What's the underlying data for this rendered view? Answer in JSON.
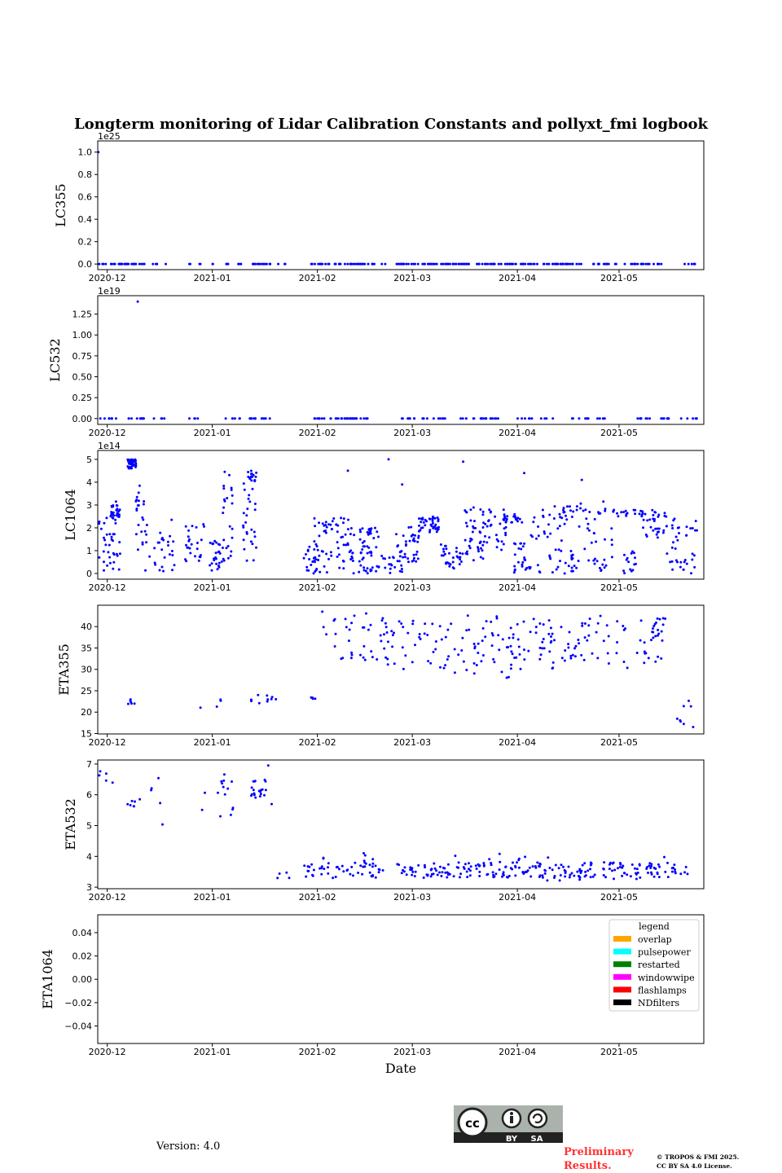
{
  "title": "Longterm monitoring of Lidar Calibration Constants and pollyxt_fmi logbook",
  "xlabel": "Date",
  "x_axis": {
    "unit": "days since 2020-12-01",
    "range": [
      -2.8,
      176
    ],
    "ticks": [
      {
        "value": 0,
        "label": "2020-12"
      },
      {
        "value": 31,
        "label": "2021-01"
      },
      {
        "value": 62,
        "label": "2021-02"
      },
      {
        "value": 90,
        "label": "2021-03"
      },
      {
        "value": 121,
        "label": "2021-04"
      },
      {
        "value": 151,
        "label": "2021-05"
      }
    ]
  },
  "chart_data": [
    {
      "type": "scatter",
      "ylabel": "LC355",
      "offset_text": "1e25",
      "ylim": [
        -0.05,
        1.1
      ],
      "color": "#0000ff",
      "yticks": [
        {
          "value": 0,
          "label": "0.0"
        },
        {
          "value": 0.2,
          "label": "0.2"
        },
        {
          "value": 0.4,
          "label": "0.4"
        },
        {
          "value": 0.6,
          "label": "0.6"
        },
        {
          "value": 0.8,
          "label": "0.8"
        },
        {
          "value": 1.0,
          "label": "1.0"
        }
      ],
      "clusters": [
        [
          -2.4,
          11,
          0,
          0,
          30
        ],
        [
          12.6,
          17.4,
          0,
          0,
          5
        ],
        [
          24,
          24.8,
          0,
          0,
          2
        ],
        [
          26.9,
          27.6,
          0,
          0,
          2
        ],
        [
          31,
          31.5,
          0,
          0,
          2
        ],
        [
          34.5,
          35.7,
          0,
          0,
          3
        ],
        [
          37.6,
          39.5,
          0,
          0,
          4
        ],
        [
          42.4,
          48.1,
          0,
          0,
          15
        ],
        [
          50.2,
          53.8,
          0,
          0,
          3
        ],
        [
          60.2,
          79.3,
          0,
          0,
          40
        ],
        [
          81,
          82.4,
          0,
          0,
          2
        ],
        [
          85.2,
          106.7,
          0,
          0,
          50
        ],
        [
          108.6,
          126.9,
          0,
          0,
          40
        ],
        [
          128.6,
          140,
          0,
          0,
          30
        ],
        [
          141.9,
          143.6,
          0,
          0,
          3
        ],
        [
          144.8,
          151,
          0,
          0,
          12
        ],
        [
          152.4,
          164.3,
          0,
          0,
          20
        ],
        [
          169.3,
          173.8,
          0,
          0,
          6
        ]
      ],
      "points": [
        [
          -2.6,
          1.0
        ]
      ]
    },
    {
      "type": "scatter",
      "ylabel": "LC532",
      "offset_text": "1e19",
      "ylim": [
        -0.07,
        1.47
      ],
      "color": "#0000ff",
      "yticks": [
        {
          "value": 0,
          "label": "0.00"
        },
        {
          "value": 0.25,
          "label": "0.25"
        },
        {
          "value": 0.5,
          "label": "0.50"
        },
        {
          "value": 0.75,
          "label": "0.75"
        },
        {
          "value": 1.0,
          "label": "1.00"
        },
        {
          "value": 1.25,
          "label": "1.25"
        }
      ],
      "clusters": [
        [
          -2.4,
          3.1,
          0,
          0,
          10
        ],
        [
          6.2,
          11,
          0,
          0,
          10
        ],
        [
          13,
          17,
          0,
          0,
          4
        ],
        [
          24,
          27.6,
          0,
          0,
          4
        ],
        [
          34.5,
          39.5,
          0,
          0,
          6
        ],
        [
          42,
          48,
          0,
          0,
          14
        ],
        [
          60,
          78,
          0,
          0,
          35
        ],
        [
          86,
          92,
          0,
          0,
          8
        ],
        [
          93,
          102,
          0,
          0,
          10
        ],
        [
          104,
          116,
          0,
          0,
          20
        ],
        [
          121,
          133,
          0,
          0,
          10
        ],
        [
          137,
          149,
          0,
          0,
          12
        ],
        [
          156,
          166,
          0,
          0,
          15
        ],
        [
          169,
          174,
          0,
          0,
          6
        ]
      ],
      "points": [
        [
          9,
          1.4
        ]
      ]
    },
    {
      "type": "scatter",
      "ylabel": "LC1064",
      "offset_text": "1e14",
      "ylim": [
        -0.25,
        5.39
      ],
      "color": "#0000ff",
      "yticks": [
        {
          "value": 0,
          "label": "0"
        },
        {
          "value": 1,
          "label": "1"
        },
        {
          "value": 2,
          "label": "2"
        },
        {
          "value": 3,
          "label": "3"
        },
        {
          "value": 4,
          "label": "4"
        },
        {
          "value": 5,
          "label": "5"
        }
      ],
      "clusters": [
        [
          -3,
          4,
          0,
          3.2,
          40
        ],
        [
          1,
          4,
          2.4,
          3.0,
          25
        ],
        [
          6,
          8.5,
          4.6,
          5.0,
          40
        ],
        [
          8,
          11,
          1,
          4,
          20
        ],
        [
          11,
          20,
          0.1,
          2.5,
          30
        ],
        [
          23,
          29,
          0.5,
          2.2,
          25
        ],
        [
          30,
          34,
          0.1,
          1.5,
          25
        ],
        [
          34,
          37,
          0.5,
          4.6,
          25
        ],
        [
          40,
          44,
          0.5,
          4.5,
          30
        ],
        [
          42,
          44,
          4.0,
          4.5,
          15
        ],
        [
          58,
          62,
          0,
          1.5,
          20
        ],
        [
          61,
          73,
          0,
          2.5,
          70
        ],
        [
          73,
          80,
          0,
          2,
          40
        ],
        [
          77,
          78,
          1.7,
          2.0,
          15
        ],
        [
          80,
          87,
          0,
          0.8,
          20
        ],
        [
          85,
          92,
          0.5,
          2.1,
          40
        ],
        [
          92,
          98,
          1.8,
          2.5,
          40
        ],
        [
          98,
          105,
          0.2,
          1.3,
          30
        ],
        [
          105,
          111,
          0.5,
          3.0,
          40
        ],
        [
          111,
          118,
          1,
          2.8,
          30
        ],
        [
          117,
          123,
          2.2,
          2.6,
          20
        ],
        [
          120,
          125,
          0,
          1.5,
          25
        ],
        [
          125,
          135,
          0,
          3,
          40
        ],
        [
          134,
          139,
          0,
          1,
          15
        ],
        [
          134,
          139,
          2.3,
          3,
          12
        ],
        [
          139,
          149,
          0,
          3.2,
          40
        ],
        [
          149,
          158,
          2.5,
          2.8,
          20
        ],
        [
          152,
          156,
          0,
          1,
          15
        ],
        [
          158,
          165,
          1.5,
          2.8,
          30
        ],
        [
          165,
          174,
          0,
          2.4,
          40
        ]
      ],
      "points": [
        [
          71,
          4.5
        ],
        [
          123,
          4.4
        ],
        [
          140,
          4.1
        ],
        [
          105,
          4.9
        ],
        [
          83,
          5.0
        ],
        [
          87,
          3.9
        ]
      ]
    },
    {
      "type": "scatter",
      "ylabel": "ETA355",
      "offset_text": "",
      "ylim": [
        14.9,
        45
      ],
      "color": "#0000ff",
      "yticks": [
        {
          "value": 15,
          "label": "15"
        },
        {
          "value": 20,
          "label": "20"
        },
        {
          "value": 25,
          "label": "25"
        },
        {
          "value": 30,
          "label": "30"
        },
        {
          "value": 35,
          "label": "35"
        },
        {
          "value": 40,
          "label": "40"
        }
      ],
      "clusters": [
        [
          6,
          8.5,
          21,
          23,
          6
        ],
        [
          27,
          34,
          21,
          23,
          4
        ],
        [
          42,
          50,
          22,
          24,
          10
        ],
        [
          60,
          62,
          23,
          23.5,
          4
        ],
        [
          63,
          80,
          32,
          44,
          30
        ],
        [
          80,
          101,
          30,
          42,
          50
        ],
        [
          101,
          120,
          28,
          43,
          50
        ],
        [
          120,
          139,
          29,
          42,
          50
        ],
        [
          139,
          165,
          30,
          43,
          50
        ],
        [
          161,
          165,
          38,
          42,
          10
        ],
        [
          166,
          173,
          16,
          23,
          8
        ]
      ],
      "points": []
    },
    {
      "type": "scatter",
      "ylabel": "ETA532",
      "offset_text": "",
      "ylim": [
        2.95,
        7.13
      ],
      "color": "#0000ff",
      "yticks": [
        {
          "value": 3,
          "label": "3"
        },
        {
          "value": 4,
          "label": "4"
        },
        {
          "value": 5,
          "label": "5"
        },
        {
          "value": 6,
          "label": "6"
        },
        {
          "value": 7,
          "label": "7"
        }
      ],
      "clusters": [
        [
          -2.5,
          3,
          6.3,
          6.8,
          5
        ],
        [
          6,
          8.5,
          5.6,
          5.8,
          6
        ],
        [
          9,
          17,
          5,
          6.8,
          6
        ],
        [
          27,
          39,
          5.2,
          6.7,
          15
        ],
        [
          42,
          47,
          5.9,
          6.5,
          20
        ],
        [
          50,
          54,
          3.2,
          3.6,
          4
        ],
        [
          58,
          172,
          3.3,
          3.8,
          260
        ],
        [
          58,
          172,
          3.2,
          4.1,
          40
        ]
      ],
      "points": [
        [
          47.5,
          6.95
        ],
        [
          48.5,
          5.7
        ]
      ]
    },
    {
      "type": "scatter",
      "ylabel": "ETA1064",
      "offset_text": "",
      "ylim": [
        -0.055,
        0.0553
      ],
      "color": "#0000ff",
      "yticks": [
        {
          "value": -0.04,
          "label": "−0.04"
        },
        {
          "value": -0.02,
          "label": "−0.02"
        },
        {
          "value": 0,
          "label": "0.00"
        },
        {
          "value": 0.02,
          "label": "0.02"
        },
        {
          "value": 0.04,
          "label": "0.04"
        }
      ],
      "clusters": [],
      "points": [],
      "legend": {
        "title": "legend",
        "position": "top-right",
        "entries": [
          {
            "label": "overlap",
            "color": "#ffa500"
          },
          {
            "label": "pulsepower",
            "color": "#00ffff"
          },
          {
            "label": "restarted",
            "color": "#008000"
          },
          {
            "label": "windowwipe",
            "color": "#ff00ff"
          },
          {
            "label": "flashlamps",
            "color": "#ff0000"
          },
          {
            "label": "NDfilters",
            "color": "#000000"
          }
        ]
      }
    }
  ],
  "footer": {
    "version": "Version: 4.0",
    "license_badge": {
      "cc": "cc",
      "by": "BY",
      "sa": "SA"
    },
    "preliminary_line1": "Preliminary",
    "preliminary_line2": "Results.",
    "copyright_line1": "© TROPOS & FMI 2025.",
    "copyright_line2": "CC BY SA 4.0 License."
  }
}
